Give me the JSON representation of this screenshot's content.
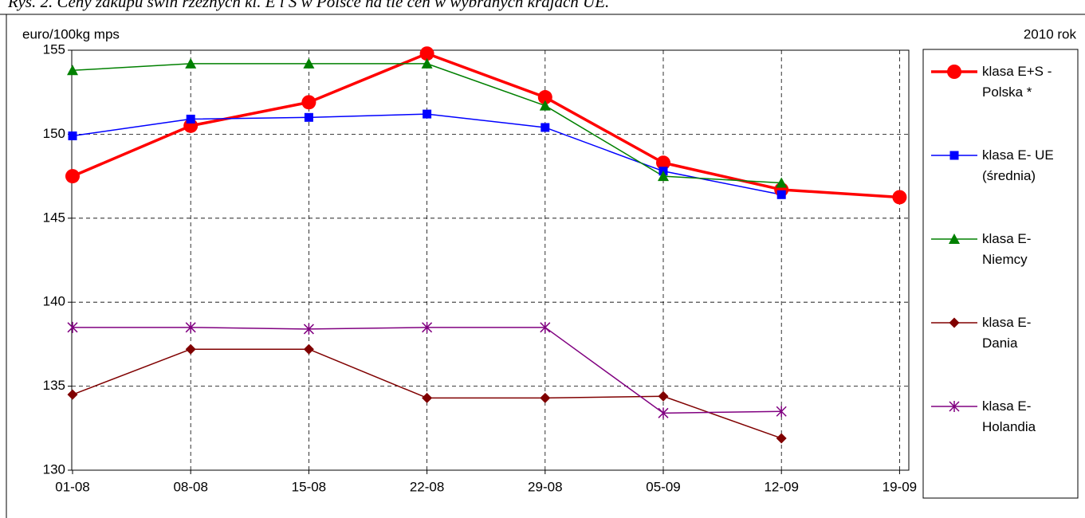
{
  "chart_data": {
    "type": "line",
    "title": "Rys. 2. Ceny zakupu świń rzeźnych kl. E i S w Polsce na tle cen w wybranych krajach UE.",
    "y_label": "euro/100kg mps",
    "note": "2010 rok",
    "categories": [
      "01-08",
      "08-08",
      "15-08",
      "22-08",
      "29-08",
      "05-09",
      "12-09",
      "19-09"
    ],
    "series": [
      {
        "name": "klasa E+S - Polska *",
        "color": "#ff0000",
        "marker": "circle",
        "line_width": 3.5,
        "values": [
          147.5,
          150.5,
          151.9,
          154.8,
          152.2,
          148.3,
          146.7,
          146.25
        ]
      },
      {
        "name": "klasa E- UE (średnia)",
        "color": "#0000ff",
        "marker": "square",
        "line_width": 1.5,
        "values": [
          149.9,
          150.9,
          151.0,
          151.2,
          150.4,
          147.8,
          146.4,
          null
        ]
      },
      {
        "name": "klasa E- Niemcy",
        "color": "#008000",
        "marker": "triangle",
        "line_width": 1.5,
        "values": [
          153.8,
          154.2,
          154.2,
          154.2,
          151.7,
          147.5,
          147.1,
          null
        ]
      },
      {
        "name": "klasa E- Dania",
        "color": "#800000",
        "marker": "diamond",
        "line_width": 1.5,
        "values": [
          134.5,
          137.2,
          137.2,
          134.3,
          134.3,
          134.4,
          131.9,
          null
        ]
      },
      {
        "name": "klasa E- Holandia",
        "color": "#800080",
        "marker": "asterisk",
        "line_width": 1.5,
        "values": [
          138.5,
          138.5,
          138.4,
          138.5,
          138.5,
          133.4,
          133.5,
          null
        ]
      }
    ],
    "ylim": [
      130,
      155
    ],
    "yticks": [
      130,
      135,
      140,
      145,
      150,
      155
    ],
    "grid": true,
    "legend": "right"
  }
}
